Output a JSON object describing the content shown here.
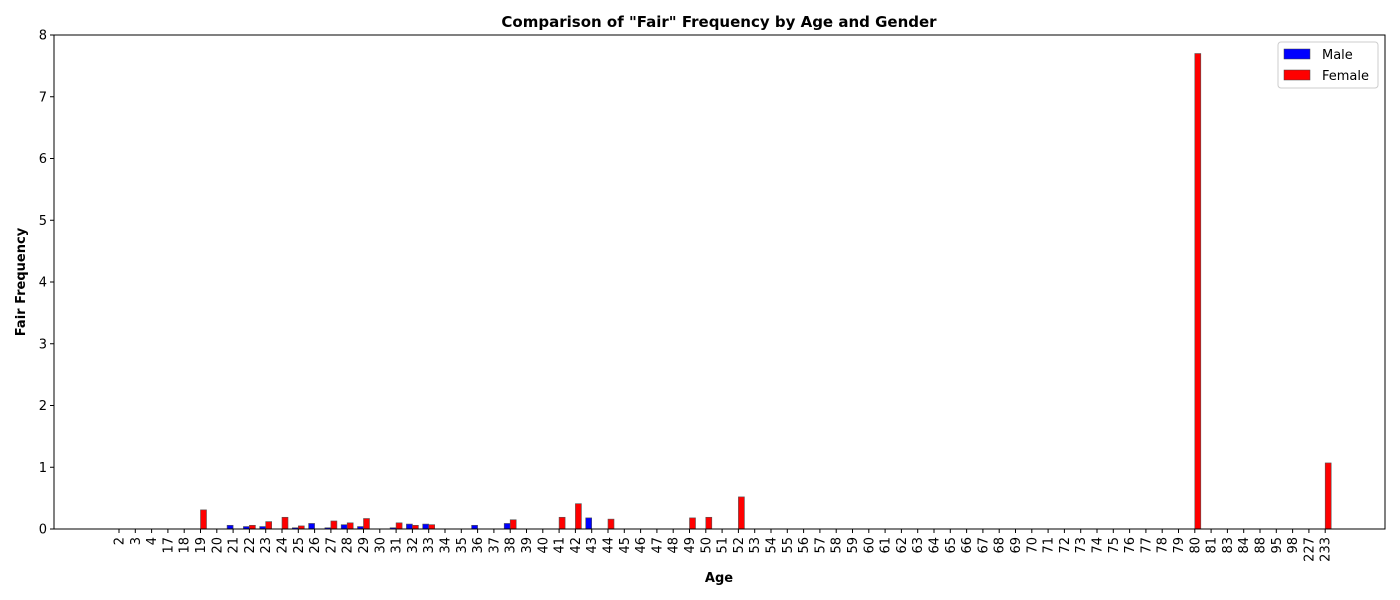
{
  "chart_data": {
    "type": "bar",
    "title": "Comparison of \"Fair\" Frequency by Age and Gender",
    "xlabel": "Age",
    "ylabel": "Fair Frequency",
    "ylim": [
      0,
      8
    ],
    "yticks": [
      0,
      1,
      2,
      3,
      4,
      5,
      6,
      7,
      8
    ],
    "legend_position": "top-right",
    "categories": [
      "2",
      "3",
      "4",
      "17",
      "18",
      "19",
      "20",
      "21",
      "22",
      "23",
      "24",
      "25",
      "26",
      "27",
      "28",
      "29",
      "30",
      "31",
      "32",
      "33",
      "34",
      "35",
      "36",
      "37",
      "38",
      "39",
      "40",
      "41",
      "42",
      "43",
      "44",
      "45",
      "46",
      "47",
      "48",
      "49",
      "50",
      "51",
      "52",
      "53",
      "54",
      "55",
      "56",
      "57",
      "58",
      "59",
      "60",
      "61",
      "62",
      "63",
      "64",
      "65",
      "66",
      "67",
      "68",
      "69",
      "70",
      "71",
      "72",
      "73",
      "74",
      "75",
      "76",
      "77",
      "78",
      "79",
      "80",
      "81",
      "83",
      "84",
      "88",
      "95",
      "98",
      "227",
      "233"
    ],
    "series": [
      {
        "name": "Male",
        "color": "#0000ff",
        "values": [
          0,
          0,
          0,
          0,
          0,
          0,
          0,
          0.06,
          0.04,
          0.04,
          0,
          0.02,
          0.09,
          0.02,
          0.07,
          0.04,
          0,
          0.02,
          0.08,
          0.08,
          0,
          0,
          0.06,
          0,
          0.09,
          0,
          0,
          0,
          0,
          0.18,
          0,
          0,
          0,
          0,
          0,
          0,
          0,
          0,
          0,
          0,
          0,
          0,
          0,
          0,
          0,
          0,
          0,
          0,
          0,
          0,
          0,
          0,
          0,
          0,
          0,
          0,
          0,
          0,
          0,
          0,
          0,
          0,
          0,
          0,
          0,
          0,
          0,
          0,
          0,
          0,
          0,
          0,
          0,
          0,
          0
        ]
      },
      {
        "name": "Female",
        "color": "#ff0000",
        "values": [
          0,
          0,
          0,
          0,
          0,
          0.31,
          0,
          0,
          0.06,
          0.12,
          0.19,
          0.05,
          0,
          0.13,
          0.1,
          0.17,
          0,
          0.1,
          0.06,
          0.07,
          0,
          0,
          0,
          0,
          0.15,
          0,
          0,
          0.19,
          0.41,
          0,
          0.16,
          0,
          0,
          0,
          0,
          0.18,
          0.19,
          0,
          0.52,
          0,
          0,
          0,
          0,
          0,
          0,
          0,
          0,
          0,
          0,
          0,
          0,
          0,
          0,
          0,
          0,
          0,
          0,
          0,
          0,
          0,
          0,
          0,
          0,
          0,
          0,
          0,
          7.7,
          0,
          0,
          0,
          0,
          0,
          0,
          0,
          1.07
        ]
      }
    ]
  }
}
